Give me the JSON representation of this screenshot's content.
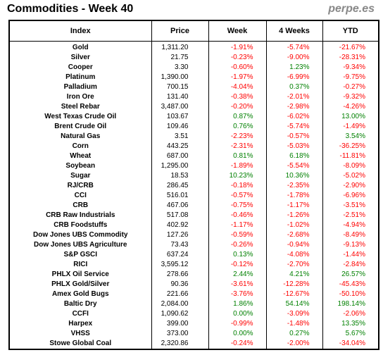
{
  "header": {
    "title": "Commodities - Week 40",
    "brand": "perpe.es"
  },
  "columns": [
    "Index",
    "Price",
    "Week",
    "4 Weeks",
    "YTD"
  ],
  "colors": {
    "negative": "#ff0000",
    "positive": "#008000"
  },
  "rows": [
    [
      "Gold",
      "1,311.20",
      "-1.91%",
      "-5.74%",
      "-21.67%"
    ],
    [
      "Silver",
      "21.75",
      "-0.23%",
      "-9.00%",
      "-28.31%"
    ],
    [
      "Cooper",
      "3.30",
      "-0.60%",
      "1.23%",
      "-9.34%"
    ],
    [
      "Platinum",
      "1,390.00",
      "-1.97%",
      "-6.99%",
      "-9.75%"
    ],
    [
      "Palladium",
      "700.15",
      "-4.04%",
      "0.37%",
      "-0.27%"
    ],
    [
      "Iron Ore",
      "131.40",
      "-0.38%",
      "-2.01%",
      "-9.32%"
    ],
    [
      "Steel Rebar",
      "3,487.00",
      "-0.20%",
      "-2.98%",
      "-4.26%"
    ],
    [
      "West Texas Crude Oil",
      "103.67",
      "0.87%",
      "-6.02%",
      "13.00%"
    ],
    [
      "Brent Crude Oil",
      "109.46",
      "0.76%",
      "-5.74%",
      "-1.49%"
    ],
    [
      "Natural Gas",
      "3.51",
      "-2.23%",
      "-0.57%",
      "3.54%"
    ],
    [
      "Corn",
      "443.25",
      "-2.31%",
      "-5.03%",
      "-36.25%"
    ],
    [
      "Wheat",
      "687.00",
      "0.81%",
      "6.18%",
      "-11.81%"
    ],
    [
      "Soybean",
      "1,295.00",
      "-1.89%",
      "-5.54%",
      "-8.09%"
    ],
    [
      "Sugar",
      "18.53",
      "10.23%",
      "10.36%",
      "-5.02%"
    ],
    [
      "RJ/CRB",
      "286.45",
      "-0.18%",
      "-2.35%",
      "-2.90%"
    ],
    [
      "CCI",
      "516.01",
      "-0.57%",
      "-1.78%",
      "-6.96%"
    ],
    [
      "CRB",
      "467.06",
      "-0.75%",
      "-1.17%",
      "-3.51%"
    ],
    [
      "CRB Raw Industrials",
      "517.08",
      "-0.46%",
      "-1.26%",
      "-2.51%"
    ],
    [
      "CRB Foodstuffs",
      "402.92",
      "-1.17%",
      "-1.02%",
      "-4.94%"
    ],
    [
      "Dow Jones UBS Commodity",
      "127.26",
      "-0.59%",
      "-2.68%",
      "-8.49%"
    ],
    [
      "Dow Jones UBS Agriculture",
      "73.43",
      "-0.26%",
      "-0.94%",
      "-9.13%"
    ],
    [
      "S&P GSCI",
      "637.24",
      "0.13%",
      "-4.08%",
      "-1.44%"
    ],
    [
      "RICI",
      "3,595.12",
      "-0.12%",
      "-2.70%",
      "-2.84%"
    ],
    [
      "PHLX Oil Service",
      "278.66",
      "2.44%",
      "4.21%",
      "26.57%"
    ],
    [
      "PHLX Gold/Silver",
      "90.36",
      "-3.61%",
      "-12.28%",
      "-45.43%"
    ],
    [
      "Amex Gold Bugs",
      "221.66",
      "-3.76%",
      "-12.67%",
      "-50.10%"
    ],
    [
      "Baltic Dry",
      "2,084.00",
      "1.86%",
      "54.14%",
      "198.14%"
    ],
    [
      "CCFI",
      "1,090.62",
      "0.00%",
      "-3.09%",
      "-2.06%"
    ],
    [
      "Harpex",
      "399.00",
      "-0.99%",
      "-1.48%",
      "13.35%"
    ],
    [
      "VHSS",
      "373.00",
      "0.00%",
      "0.27%",
      "5.67%"
    ],
    [
      "Stowe Global Coal",
      "2,320.86",
      "-0.24%",
      "-2.00%",
      "-34.04%"
    ]
  ]
}
